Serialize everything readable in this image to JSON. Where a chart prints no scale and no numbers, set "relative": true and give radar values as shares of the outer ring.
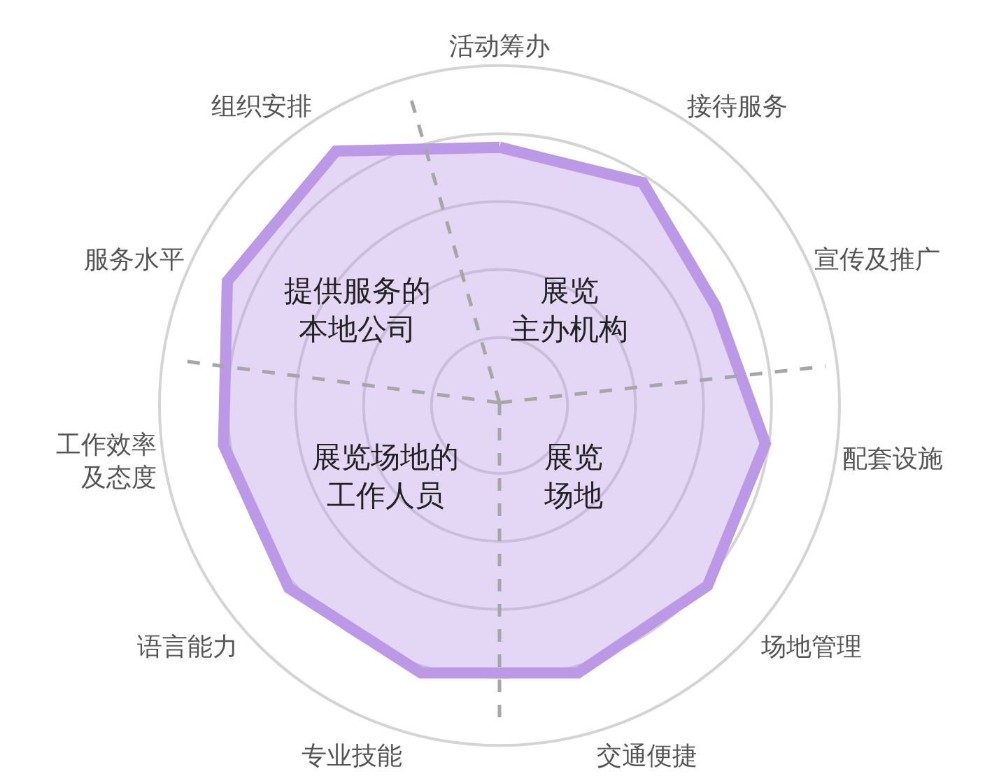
{
  "chart_data": {
    "type": "radar",
    "relative": true,
    "grid": true,
    "marker": "none",
    "line_style": "solid",
    "categories": [
      "活动筹办",
      "接待服务",
      "宣传及推广",
      "配套设施",
      "场地管理",
      "交通便捷",
      "专业技能",
      "语言能力",
      "工作效率及态度",
      "服务水平",
      "组织安排"
    ],
    "series": [
      {
        "color": "#bb99e6",
        "values": [
          0.76,
          0.78,
          0.7,
          0.79,
          0.81,
          0.82,
          0.82,
          0.82,
          0.82,
          0.88,
          0.89
        ]
      }
    ],
    "annotations": [
      "提供服务的本地公司",
      "展览主办机构",
      "展览场地的工作人员",
      "展览场地"
    ]
  }
}
